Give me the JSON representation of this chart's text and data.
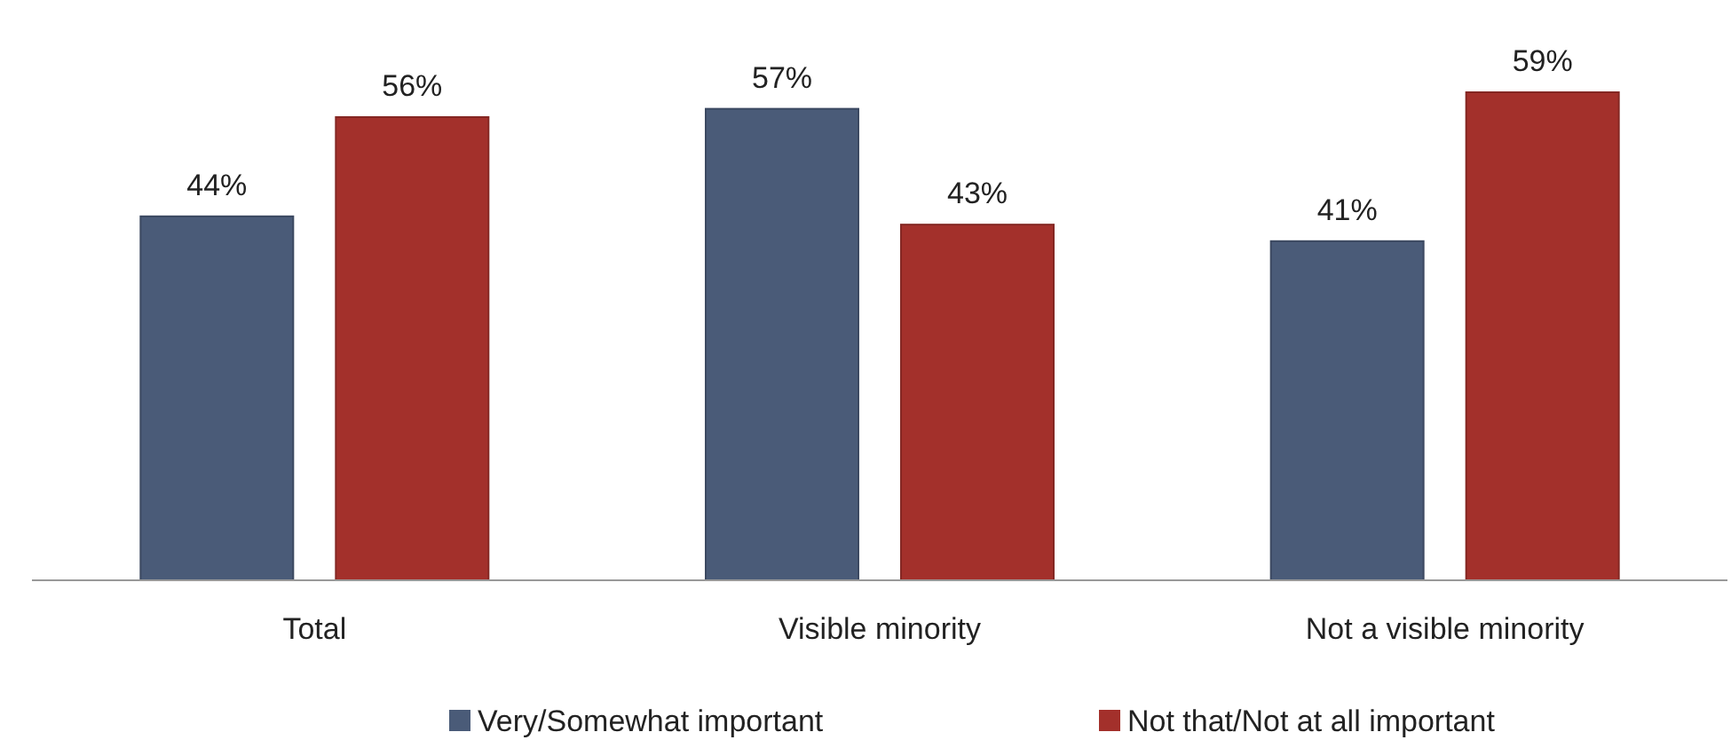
{
  "chart_data": {
    "type": "bar",
    "categories": [
      "Total",
      "Visible minority",
      "Not a visible minority"
    ],
    "series": [
      {
        "name": "Very/Somewhat important",
        "color": "#4a5b78",
        "values": [
          44,
          57,
          41
        ],
        "value_labels": [
          "44%",
          "57%",
          "41%"
        ]
      },
      {
        "name": "Not that/Not at all important",
        "color": "#a3302b",
        "values": [
          56,
          43,
          59
        ],
        "value_labels": [
          "56%",
          "43%",
          "59%"
        ]
      }
    ],
    "legend": "bottom"
  }
}
